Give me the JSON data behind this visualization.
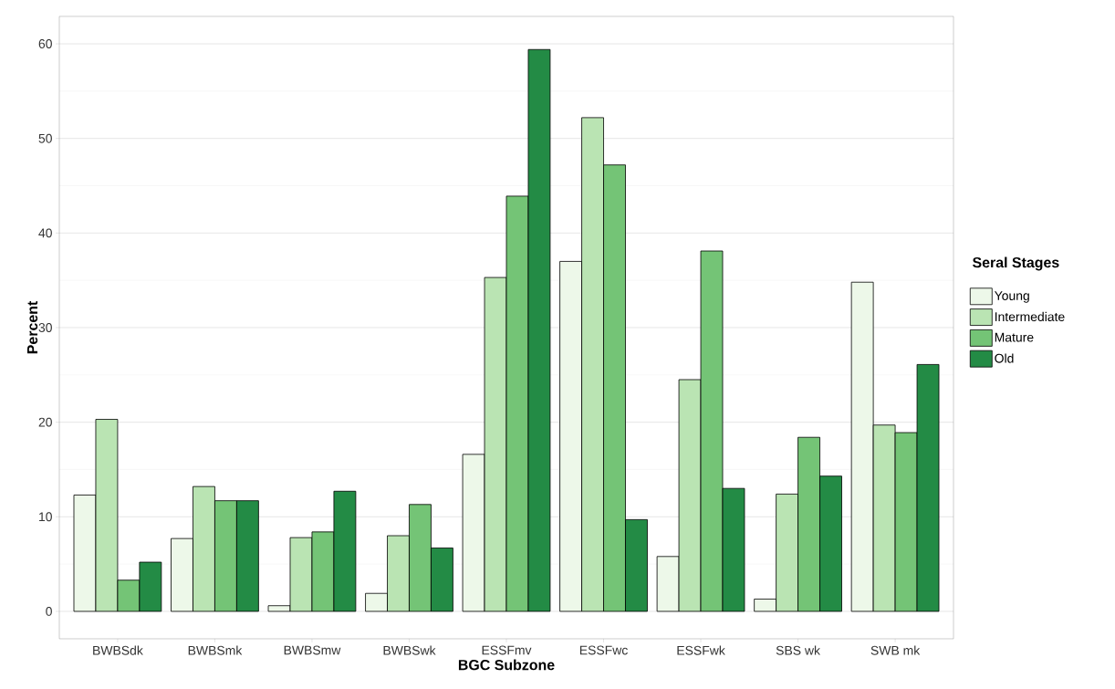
{
  "chart_data": {
    "type": "bar",
    "xlabel": "BGC Subzone",
    "ylabel": "Percent",
    "legend_title": "Seral Stages",
    "categories": [
      "BWBSdk",
      "BWBSmk",
      "BWBSmw",
      "BWBSwk",
      "ESSFmv",
      "ESSFwc",
      "ESSFwk",
      "SBS wk",
      "SWB mk"
    ],
    "series": [
      {
        "name": "Young",
        "color": "#edf8e9",
        "values": [
          12.3,
          7.7,
          0.6,
          1.9,
          16.6,
          37.0,
          5.8,
          1.3,
          34.8
        ]
      },
      {
        "name": "Intermediate",
        "color": "#bae4b3",
        "values": [
          20.3,
          13.2,
          7.8,
          8.0,
          35.3,
          52.2,
          24.5,
          12.4,
          19.7
        ]
      },
      {
        "name": "Mature",
        "color": "#74c476",
        "values": [
          3.3,
          11.7,
          8.4,
          11.3,
          43.9,
          47.2,
          38.1,
          18.4,
          18.9
        ]
      },
      {
        "name": "Old",
        "color": "#238b45",
        "values": [
          5.2,
          11.7,
          12.7,
          6.7,
          59.4,
          9.7,
          13.0,
          14.3,
          26.1
        ]
      }
    ],
    "ylim": [
      -2.9,
      62.9
    ],
    "yticks": [
      0,
      10,
      20,
      30,
      40,
      50,
      60
    ],
    "grid": "y",
    "legend": "right"
  }
}
